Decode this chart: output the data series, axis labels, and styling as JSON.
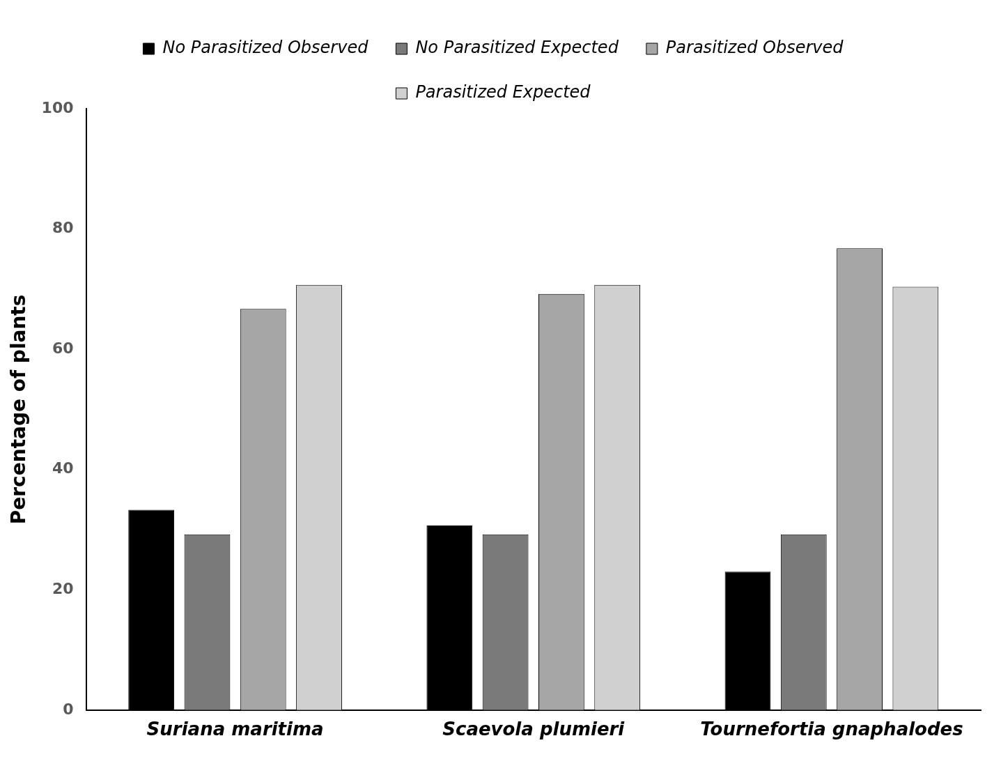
{
  "chart_data": {
    "type": "bar",
    "ylabel": "Percentage of plants",
    "categories": [
      "Suriana maritima",
      "Scaevola plumieri",
      "Tournefortia gnaphalodes"
    ],
    "series": [
      {
        "name": "No Parasitized Observed",
        "color": "#000000",
        "values": [
          33.3,
          30.7,
          23.0
        ]
      },
      {
        "name": "No Parasitized Expected",
        "color": "#7a7a7a",
        "values": [
          29.2,
          29.2,
          29.2
        ]
      },
      {
        "name": "Parasitized Observed",
        "color": "#a6a6a6",
        "values": [
          66.7,
          69.2,
          76.8
        ]
      },
      {
        "name": "Parasitized Expected",
        "color": "#d0d0d0",
        "values": [
          70.7,
          70.7,
          70.4
        ]
      }
    ],
    "ylim": [
      0,
      100
    ],
    "yticks": [
      0,
      20,
      40,
      60,
      80,
      100
    ],
    "grid": false,
    "legend": "top"
  }
}
